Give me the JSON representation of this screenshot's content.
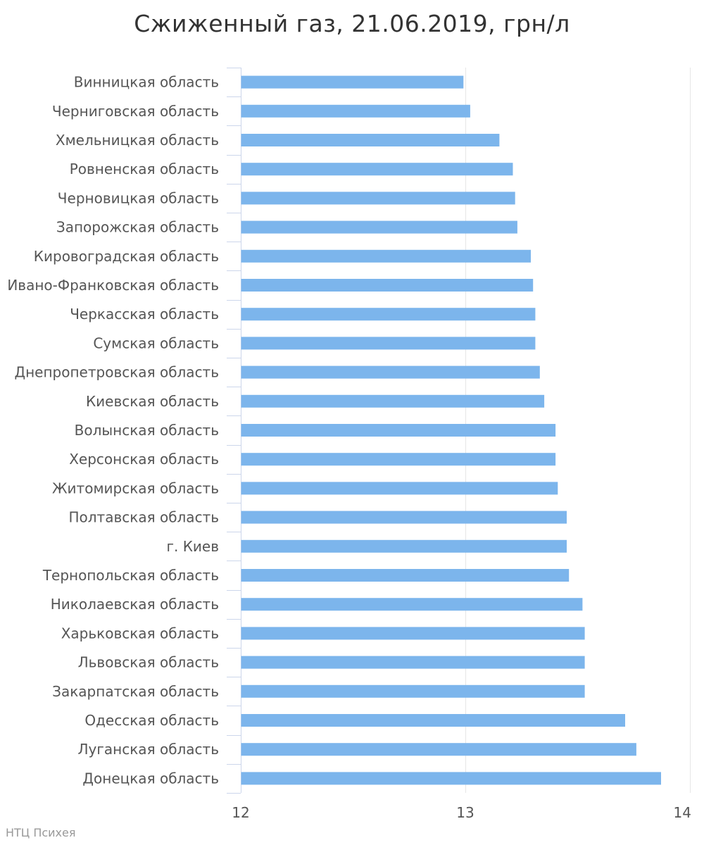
{
  "chart_data": {
    "type": "bar",
    "orientation": "horizontal",
    "title": "Сжиженный газ, 21.06.2019, грн/л",
    "credits": "НТЦ Психея",
    "xlim": [
      12,
      14
    ],
    "xticks": [
      "12",
      "13",
      "14"
    ],
    "grid": true,
    "bar_color": "#7cb5ec",
    "categories": [
      "Винницкая область",
      "Черниговская область",
      "Хмельницкая область",
      "Ровненская область",
      "Черновицкая область",
      "Запорожская область",
      "Кировоградская область",
      "Ивано-Франковская область",
      "Черкасская область",
      "Сумская область",
      "Днепропетровская область",
      "Киевская область",
      "Волынская область",
      "Херсонская область",
      "Житомирская область",
      "Полтавская область",
      "г. Киев",
      "Тернопольская область",
      "Николаевская область",
      "Харьковская область",
      "Львовская область",
      "Закарпатская область",
      "Одесская область",
      "Луганская область",
      "Донецкая область"
    ],
    "values": [
      12.99,
      13.02,
      13.15,
      13.21,
      13.22,
      13.23,
      13.29,
      13.3,
      13.31,
      13.31,
      13.33,
      13.35,
      13.4,
      13.4,
      13.41,
      13.45,
      13.45,
      13.46,
      13.52,
      13.53,
      13.53,
      13.53,
      13.71,
      13.76,
      13.87
    ]
  }
}
